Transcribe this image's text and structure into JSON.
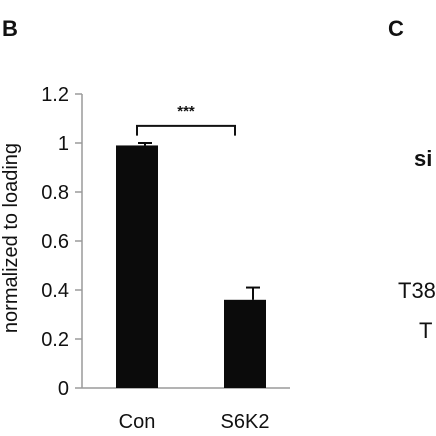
{
  "panels": {
    "b_label": "B",
    "c_label": "C"
  },
  "chart_data": {
    "type": "bar",
    "categories": [
      "Con",
      "S6K2"
    ],
    "values": [
      0.99,
      0.36
    ],
    "errors": [
      0.01,
      0.05
    ],
    "ylabel": "normalized to loading",
    "ylim": [
      0,
      1.2
    ],
    "yticks": [
      0,
      0.2,
      0.4,
      0.6,
      0.8,
      1,
      1.2
    ],
    "ytick_labels": [
      "0",
      "0.2",
      "0.4",
      "0.6",
      "0.8",
      "1",
      "1.2"
    ],
    "significance": "***",
    "grid": false,
    "colors": {
      "bar": "#0b0b0b",
      "axis": "#9a9a9a",
      "text": "#111111"
    }
  },
  "panel_c_fragments": {
    "line1": "si",
    "line2": "T38",
    "line3": "T"
  }
}
